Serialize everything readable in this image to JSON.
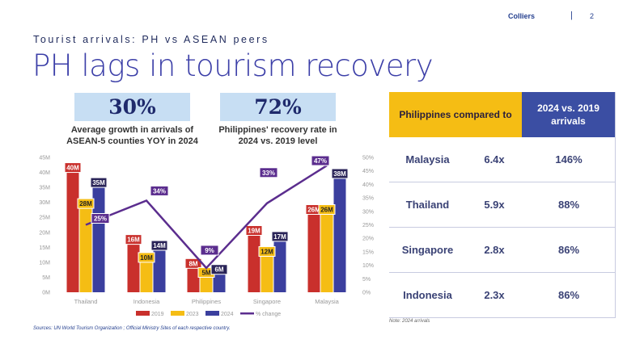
{
  "header": {
    "brand": "Colliers",
    "separator": "|",
    "page": "2"
  },
  "subtitle": "Tourist arrivals: PH vs ASEAN peers",
  "title": "PH lags in tourism recovery",
  "kpis": [
    {
      "value": "30%",
      "caption": "Average growth in arrivals of ASEAN-5 counties YOY in 2024"
    },
    {
      "value": "72%",
      "caption": "Philippines' recovery rate in 2024 vs. 2019 level"
    }
  ],
  "chart_data": {
    "type": "bar",
    "categories": [
      "Thailand",
      "Indonesia",
      "Philippines",
      "Singapore",
      "Malaysia"
    ],
    "series": [
      {
        "name": "2019",
        "values": [
          40,
          16,
          8,
          19,
          26
        ],
        "labels": [
          "40M",
          "16M",
          "8M",
          "19M",
          "26M"
        ],
        "color": "#c9302c"
      },
      {
        "name": "2023",
        "values": [
          28,
          10,
          5,
          12,
          26
        ],
        "labels": [
          "28M",
          "10M",
          "5M",
          "12M",
          "26M"
        ],
        "color": "#f5bd14"
      },
      {
        "name": "2024",
        "values": [
          35,
          14,
          6,
          17,
          38
        ],
        "labels": [
          "35M",
          "14M",
          "6M",
          "17M",
          "38M"
        ],
        "color": "#3b3f9e"
      },
      {
        "name": "% change",
        "type": "line",
        "values": [
          25,
          34,
          9,
          33,
          47
        ],
        "labels": [
          "25%",
          "34%",
          "9%",
          "33%",
          "47%"
        ],
        "color": "#5b2d8e"
      }
    ],
    "y_left": {
      "ylim": [
        0,
        45
      ],
      "ticks": [
        "0M",
        "5M",
        "10M",
        "15M",
        "20M",
        "25M",
        "30M",
        "35M",
        "40M",
        "45M"
      ]
    },
    "y_right": {
      "ylim": [
        0,
        50
      ],
      "ticks": [
        "0%",
        "5%",
        "10%",
        "15%",
        "20%",
        "25%",
        "30%",
        "35%",
        "40%",
        "45%",
        "50%"
      ]
    },
    "legend": "bottom"
  },
  "source": "Sources: UN World Tourism Organization ; Official Ministry Sites of each respective country.",
  "table": {
    "header": [
      "Philippines compared to",
      "2024 vs. 2019 arrivals"
    ],
    "rows": [
      [
        "Malaysia",
        "6.4x",
        "146%"
      ],
      [
        "Thailand",
        "5.9x",
        "88%"
      ],
      [
        "Singapore",
        "2.8x",
        "86%"
      ],
      [
        "Indonesia",
        "2.3x",
        "86%"
      ]
    ],
    "note": "Note: 2024 arrivals"
  }
}
